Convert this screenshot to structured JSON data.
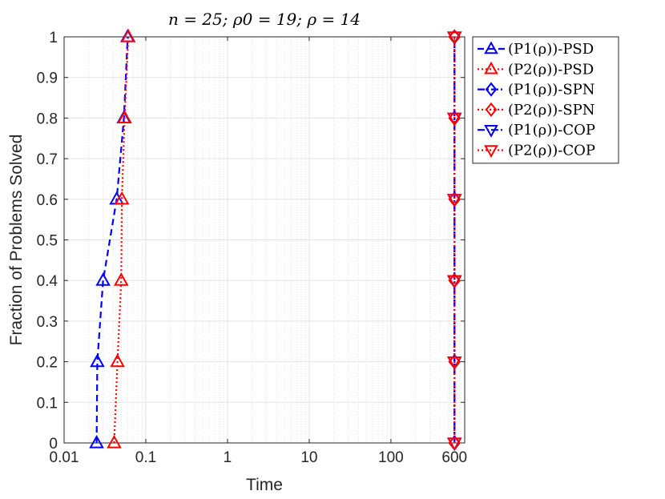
{
  "chart_data": {
    "type": "line",
    "title": "n = 25; ρ0 = 19; ρ = 14",
    "xlabel": "Time",
    "ylabel": "Fraction of Problems Solved",
    "x_scale": "log",
    "xlim": [
      0.01,
      800
    ],
    "ylim": [
      0,
      1
    ],
    "x_ticks": [
      {
        "value": 0.01,
        "label": "0.01"
      },
      {
        "value": 0.1,
        "label": "0.1"
      },
      {
        "value": 1,
        "label": "1"
      },
      {
        "value": 10,
        "label": "10"
      },
      {
        "value": 100,
        "label": "100"
      },
      {
        "value": 600,
        "label": "600"
      }
    ],
    "y_ticks": [
      {
        "value": 0,
        "label": "0"
      },
      {
        "value": 0.1,
        "label": "0.1"
      },
      {
        "value": 0.2,
        "label": "0.2"
      },
      {
        "value": 0.3,
        "label": "0.3"
      },
      {
        "value": 0.4,
        "label": "0.4"
      },
      {
        "value": 0.5,
        "label": "0.5"
      },
      {
        "value": 0.6,
        "label": "0.6"
      },
      {
        "value": 0.7,
        "label": "0.7"
      },
      {
        "value": 0.8,
        "label": "0.8"
      },
      {
        "value": 0.9,
        "label": "0.9"
      },
      {
        "value": 1,
        "label": "1"
      }
    ],
    "grid": true,
    "legend_position": "outside-right-top",
    "series": [
      {
        "name": "(P1(ρ))-PSD",
        "color": "#0000ff",
        "dash": "dashed",
        "marker": "triangle-up",
        "x": [
          0.025,
          0.0255,
          0.03,
          0.044,
          0.054,
          0.06
        ],
        "y": [
          0,
          0.2,
          0.4,
          0.6,
          0.8,
          1
        ]
      },
      {
        "name": "(P2(ρ))-PSD",
        "color": "#ff0000",
        "dash": "dotted",
        "marker": "triangle-up",
        "x": [
          0.041,
          0.045,
          0.05,
          0.051,
          0.055,
          0.061
        ],
        "y": [
          0,
          0.2,
          0.4,
          0.6,
          0.8,
          1
        ]
      },
      {
        "name": "(P1(ρ))-SPN",
        "color": "#0000ff",
        "dash": "dashdot",
        "marker": "diamond",
        "x": [
          600,
          600,
          600,
          600,
          600,
          600
        ],
        "y": [
          0,
          0.2,
          0.4,
          0.6,
          0.8,
          1
        ]
      },
      {
        "name": "(P2(ρ))-SPN",
        "color": "#ff0000",
        "dash": "dotted",
        "marker": "diamond",
        "x": [
          600,
          600,
          600,
          600,
          600,
          600
        ],
        "y": [
          0,
          0.2,
          0.4,
          0.6,
          0.8,
          1
        ]
      },
      {
        "name": "(P1(ρ))-COP",
        "color": "#0000ff",
        "dash": "dashdot",
        "marker": "triangle-down",
        "x": [
          600,
          600,
          600,
          600,
          600,
          600
        ],
        "y": [
          0,
          0.2,
          0.4,
          0.6,
          0.8,
          1
        ]
      },
      {
        "name": "(P2(ρ))-COP",
        "color": "#ff0000",
        "dash": "dotted",
        "marker": "triangle-down",
        "x": [
          600,
          600,
          600,
          600,
          600,
          600
        ],
        "y": [
          0,
          0.2,
          0.4,
          0.6,
          0.8,
          1
        ]
      }
    ]
  }
}
